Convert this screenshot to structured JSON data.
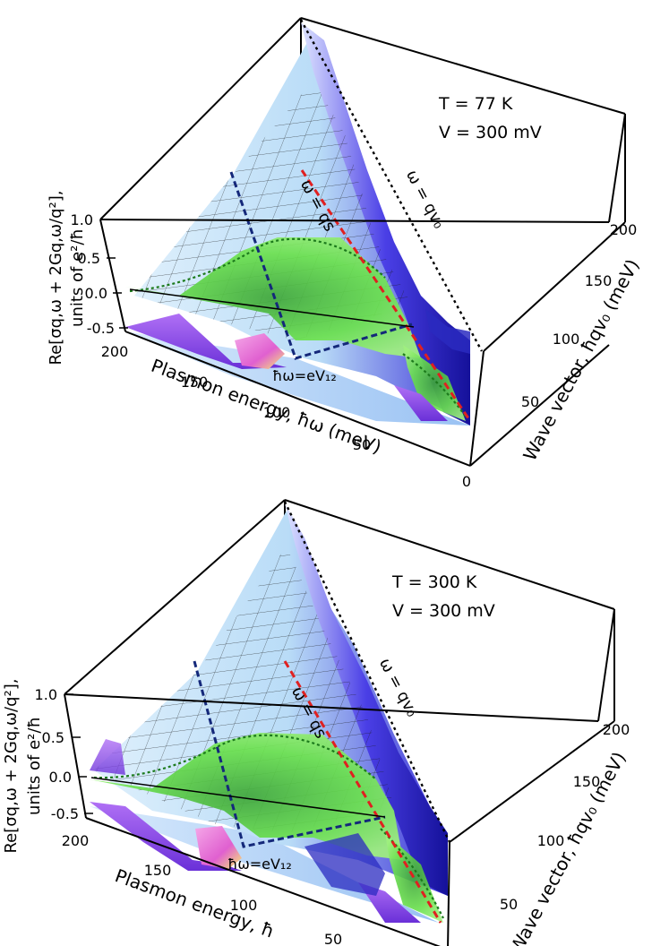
{
  "chart_data": [
    {
      "type": "surface3d",
      "panel": "top",
      "temperature": "77 K",
      "voltage": "300 mV",
      "ann_T": "T = 77 K",
      "ann_V": "V = 300 mV",
      "xlabel": "Plasmon energy, ħω (meV)",
      "ylabel": "Wave vector, ħqv₀ (meV)",
      "zlabel_line1": "Re[σq,ω + 2Gq,ω/q²],",
      "zlabel_line2": "units of e²/ħ",
      "x_ticks": [
        "200",
        "150",
        "100",
        "50",
        "0"
      ],
      "y_ticks": [
        "50",
        "100",
        "150",
        "200"
      ],
      "z_ticks": [
        "1.0",
        "0.5",
        "0.0",
        "-0.5"
      ],
      "xlim": [
        0,
        200
      ],
      "ylim": [
        0,
        200
      ],
      "zlim": [
        -0.5,
        1.0
      ],
      "lines": [
        {
          "label": "ω = qv₀",
          "style": "black dotted"
        },
        {
          "label": "ω = qs",
          "style": "red dashed"
        },
        {
          "label": "ħω=eV₁₂",
          "style": "navy dashed",
          "x_value": 100
        }
      ],
      "colors": {
        "positive": "#3a2fd8",
        "low": "#cfe7fb",
        "negative": "#6fe04a",
        "edge": "#a05cf0",
        "accent": "#f06fd0"
      }
    },
    {
      "type": "surface3d",
      "panel": "bottom",
      "temperature": "300 K",
      "voltage": "300 mV",
      "ann_T": "T = 300 K",
      "ann_V": "V = 300 mV",
      "xlabel": "Plasmon energy, ħ",
      "ylabel": "Wave vector, ħqv₀ (meV)",
      "zlabel_line1": "Re[σq,ω + 2Gq,ω/q²],",
      "zlabel_line2": "units of e²/ħ",
      "x_ticks": [
        "200",
        "150",
        "100",
        "50"
      ],
      "y_ticks": [
        "50",
        "100",
        "150",
        "200"
      ],
      "z_ticks": [
        "1.0",
        "0.5",
        "0.0",
        "-0.5"
      ],
      "xlim": [
        0,
        200
      ],
      "ylim": [
        0,
        200
      ],
      "zlim": [
        -0.5,
        1.0
      ],
      "lines": [
        {
          "label": "ω = qv₀",
          "style": "black dotted"
        },
        {
          "label": "ω = qs",
          "style": "red dashed"
        },
        {
          "label": "ħω=eV₁₂",
          "style": "navy dashed",
          "x_value": 100
        }
      ],
      "colors": {
        "positive": "#3a2fd8",
        "low": "#cfe7fb",
        "negative": "#6fe04a",
        "edge": "#a05cf0",
        "accent": "#f06fd0"
      }
    }
  ]
}
